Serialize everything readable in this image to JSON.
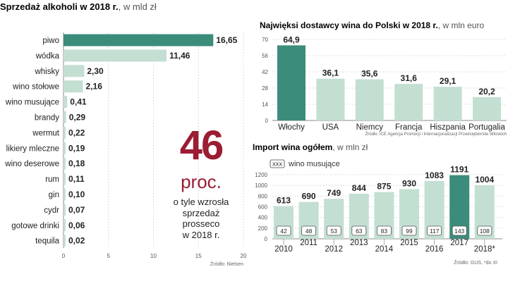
{
  "chart_data": [
    {
      "type": "bar",
      "orientation": "horizontal",
      "title": "Sprzedaż alkoholi w 2018 r.",
      "unit": ", w mld zł",
      "categories": [
        "piwo",
        "wódka",
        "whisky",
        "wino stołowe",
        "wino musujące",
        "brandy",
        "wermut",
        "likiery mleczne",
        "wino deserowe",
        "rum",
        "gin",
        "cydr",
        "gotowe drinki",
        "tequila"
      ],
      "values": [
        16.65,
        11.46,
        2.3,
        2.16,
        0.41,
        0.29,
        0.22,
        0.19,
        0.18,
        0.11,
        0.1,
        0.07,
        0.06,
        0.02
      ],
      "value_labels": [
        "16,65",
        "11,46",
        "2,30",
        "2,16",
        "0,41",
        "0,29",
        "0,22",
        "0,19",
        "0,18",
        "0,11",
        "0,10",
        "0,07",
        "0,06",
        "0,02"
      ],
      "xlim": [
        0,
        20
      ],
      "xticks": [
        0,
        5,
        10,
        15,
        20
      ],
      "source": "Źródło: Nielsen"
    },
    {
      "type": "bar",
      "title": "Najwięksi dostawcy wina do Polski w 2018 r.",
      "unit": ", w mln euro",
      "categories": [
        "Włochy",
        "USA",
        "Niemcy",
        "Francja",
        "Hiszpania",
        "Portugalia"
      ],
      "values": [
        64.9,
        36.1,
        35.6,
        31.6,
        29.1,
        20.2
      ],
      "value_labels": [
        "64,9",
        "36,1",
        "35,6",
        "31,6",
        "29,1",
        "20,2"
      ],
      "ylim": [
        0,
        70
      ],
      "yticks": [
        0,
        14,
        28,
        42,
        56,
        70
      ],
      "source": "Źródło: ICE Agencja Promocji i Internacjonalizacji Przedsiębiorstw Włoskich"
    },
    {
      "type": "bar",
      "title": "Import wina ogółem",
      "unit": ", w mln zł",
      "categories": [
        "2010",
        "2011",
        "2012",
        "2013",
        "2014",
        "2015",
        "2016",
        "2017",
        "2018*"
      ],
      "series": [
        {
          "name": "ogółem",
          "values": [
            613,
            690,
            749,
            844,
            875,
            930,
            1083,
            1191,
            1004
          ]
        },
        {
          "name": "wino musujące",
          "values": [
            42,
            48,
            53,
            63,
            83,
            99,
            117,
            143,
            108
          ]
        }
      ],
      "value_labels": [
        "613",
        "690",
        "749",
        "844",
        "875",
        "930",
        "1083",
        "1191",
        "1004"
      ],
      "sub_labels": [
        "42",
        "48",
        "53",
        "63",
        "83",
        "99",
        "117",
        "143",
        "108"
      ],
      "ylim": [
        0,
        1200
      ],
      "yticks": [
        0,
        200,
        400,
        600,
        800,
        1000,
        1200
      ],
      "legend_box": "XXX",
      "legend_text": "wino musujące",
      "source": "Źródło: GUS, *do XI"
    }
  ],
  "highlight": {
    "number": "46",
    "unit": "proc.",
    "description": [
      "o tyle wzrosła",
      "sprzedaż",
      "prosseco",
      "w 2018 r."
    ]
  },
  "colors": {
    "bar": "#c3dfd2",
    "highlight_bar": "#3c8c7b",
    "accent": "#9b1c33",
    "grid": "#dcdcdc"
  }
}
